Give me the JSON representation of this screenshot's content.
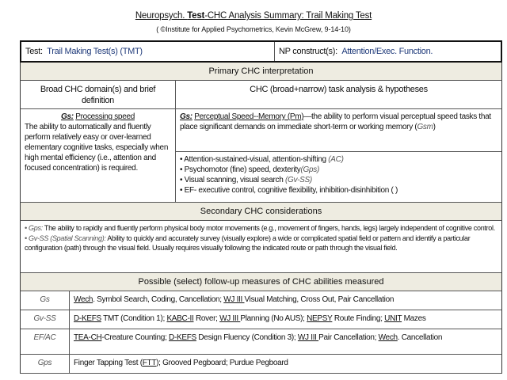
{
  "title": {
    "bold_part": "Test",
    "pre": "Neuropsych. ",
    "post": "-CHC  Analysis Summary:  Trail Making Test"
  },
  "subtitle": "( ©Institute for Applied Psychometrics, Kevin McGrew, 9-14-10)",
  "test_row": {
    "test_label": "Test:",
    "test_value": "Trail Making Test(s) (TMT)",
    "np_label": "NP construct(s):",
    "np_value": "Attention/Exec. Function."
  },
  "primary": {
    "header": "Primary CHC interpretation",
    "col1_header": "Broad CHC domain(s) and brief definition",
    "col2_header": "CHC (broad+narrow) task analysis & hypotheses",
    "domain_code": "Gs:",
    "domain_name": "Processing speed",
    "domain_definition": "The ability to automatically and fluently perform relatively easy or over-learned elementary cognitive tasks, especially when high mental efficiency (i.e., attention and focused concentration) is required.",
    "narrow_code": "Gs:",
    "narrow_name": "Perceptual Speed--Memory  (Pm)",
    "narrow_def": "—the ability to perform visual perceptual speed tasks that place significant demands on immediate short-term or working memory (",
    "narrow_def_code": "Gsm",
    "narrow_def_end": ")",
    "hypotheses": [
      {
        "text": "• Attention-sustained-visual, attention-shifting ",
        "code": "(AC)"
      },
      {
        "text": "• Psychomotor (fine)  speed,  dexterity",
        "code": "(Gps)"
      },
      {
        "text": "• Visual scanning, visual search ",
        "code": "(Gv-SS)"
      },
      {
        "text": "• EF- executive control, cognitive flexibility,  inhibition-disinhibition ( )",
        "code": ""
      }
    ]
  },
  "secondary": {
    "header": "Secondary CHC considerations",
    "items": [
      {
        "code": "• Gps:",
        "text": "  The ability to rapidly and fluently perform physical body motor movements (e.g., movement of fingers, hands, legs) largely independent of cognitive control."
      },
      {
        "code": "• Gv-SS (Spatial Scanning):",
        "text": "  Ability to quickly and accurately survey (visually explore) a wide or complicated spatial field or pattern and identify a particular configuration (path) through the visual field. Usually requires visually following the indicated route or path through the visual field."
      }
    ]
  },
  "followup": {
    "header": "Possible (select) follow-up measures of CHC abilities measured",
    "rows": [
      {
        "ability": "Gs",
        "segments": [
          {
            "t": "Wech",
            "u": true
          },
          {
            "t": ". Symbol Search, Coding, Cancellation; ",
            "u": false
          },
          {
            "t": "WJ III ",
            "u": true
          },
          {
            "t": "Visual Matching, Cross Out, Pair Cancellation",
            "u": false
          }
        ]
      },
      {
        "ability": "Gv-SS",
        "segments": [
          {
            "t": "D-KEFS",
            "u": true
          },
          {
            "t": " TMT (Condition 1); ",
            "u": false
          },
          {
            "t": "KABC-II",
            "u": true
          },
          {
            "t": " Rover; ",
            "u": false
          },
          {
            "t": "WJ III ",
            "u": true
          },
          {
            "t": "Planning (No AUS); ",
            "u": false
          },
          {
            "t": "NEPSY",
            "u": true
          },
          {
            "t": " Route Finding; ",
            "u": false
          },
          {
            "t": "UNIT",
            "u": true
          },
          {
            "t": " Mazes",
            "u": false
          }
        ]
      },
      {
        "ability": "EF/AC",
        "segments": [
          {
            "t": "TEA-CH",
            "u": true
          },
          {
            "t": "-Creature Counting; ",
            "u": false
          },
          {
            "t": "D-KEFS",
            "u": true
          },
          {
            "t": " Design Fluency (Condition 3); ",
            "u": false
          },
          {
            "t": "WJ III ",
            "u": true
          },
          {
            "t": "Pair Cancellation; ",
            "u": false
          },
          {
            "t": "Wech",
            "u": true
          },
          {
            "t": ". Cancellation",
            "u": false
          }
        ]
      },
      {
        "ability": "Gps",
        "segments": [
          {
            "t": "Finger Tapping Test (",
            "u": false
          },
          {
            "t": "FTT",
            "u": true
          },
          {
            "t": ");  Grooved Pegboard; Purdue Pegboard",
            "u": false
          }
        ]
      }
    ]
  }
}
